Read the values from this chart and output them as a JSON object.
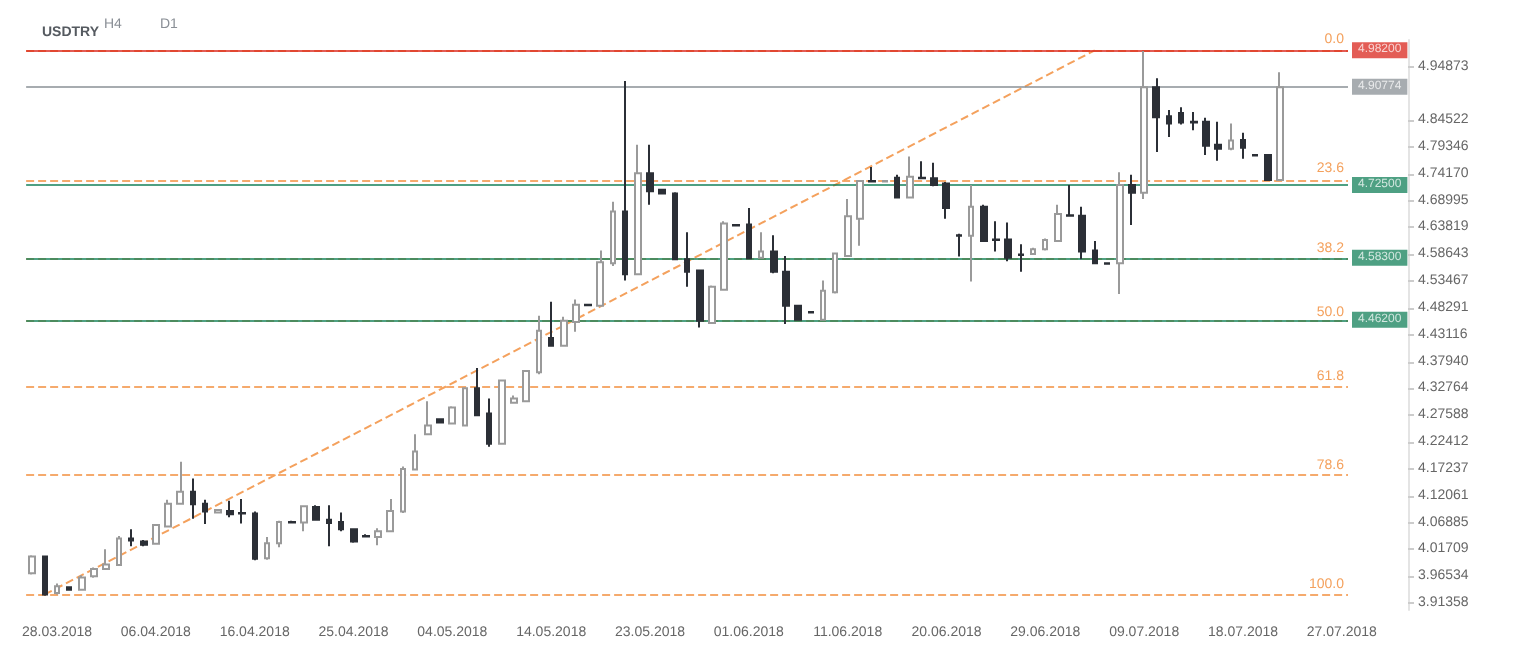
{
  "chart_data": {
    "type": "candlestick",
    "title": "USDTRY",
    "annotations": [
      "H4",
      "D1",
      {
        "text": "0.0",
        "y": 4.982
      },
      {
        "text": "23.6",
        "y": 4.7337
      },
      {
        "text": "38.2",
        "y": 4.5801
      },
      {
        "text": "50.0",
        "y": 4.456
      },
      {
        "text": "61.8",
        "y": 4.3317
      },
      {
        "text": "78.6",
        "y": 4.161
      },
      {
        "text": "100.0",
        "y": 3.93
      }
    ],
    "categories": [
      null,
      null,
      "28.03.2018",
      null,
      null,
      null,
      null,
      null,
      null,
      null,
      "06.04.2018",
      null,
      null,
      null,
      null,
      null,
      null,
      null,
      "16.04.2018",
      null,
      null,
      null,
      null,
      null,
      null,
      null,
      "25.04.2018",
      null,
      null,
      null,
      null,
      null,
      null,
      null,
      "04.05.2018",
      null,
      null,
      null,
      null,
      null,
      null,
      null,
      "14.05.2018",
      null,
      null,
      null,
      null,
      null,
      null,
      null,
      "23.05.2018",
      null,
      null,
      null,
      null,
      null,
      null,
      null,
      "01.06.2018",
      null,
      null,
      null,
      null,
      null,
      null,
      null,
      "11.06.2018",
      null,
      null,
      null,
      null,
      null,
      null,
      null,
      "20.06.2018",
      null,
      null,
      null,
      null,
      null,
      null,
      null,
      "29.06.2018",
      null,
      null,
      null,
      null,
      null,
      null,
      null,
      "09.07.2018",
      null,
      null,
      null,
      null,
      null,
      null,
      null,
      "18.07.2018",
      null,
      null,
      null,
      null,
      null,
      null,
      null,
      "27.07.2018"
    ],
    "ohlc": [
      [
        3.9707,
        4.0056,
        3.9683,
        4.0033
      ],
      [
        4.0033,
        4.0033,
        3.9276,
        3.9299
      ],
      [
        3.933,
        3.951,
        3.93,
        3.946
      ],
      [
        3.944,
        3.946,
        3.938,
        3.939
      ],
      [
        3.939,
        3.967,
        3.938,
        3.9625
      ],
      [
        3.965,
        3.982,
        3.962,
        3.979
      ],
      [
        3.979,
        4.017,
        3.977,
        3.988
      ],
      [
        3.987,
        4.043,
        3.986,
        4.038
      ],
      [
        4.038,
        4.056,
        4.023,
        4.034
      ],
      [
        4.032,
        4.035,
        4.023,
        4.026
      ],
      [
        4.028,
        4.064,
        4.026,
        4.064
      ],
      [
        4.061,
        4.113,
        4.06,
        4.105
      ],
      [
        4.105,
        4.186,
        4.105,
        4.128
      ],
      [
        4.128,
        4.154,
        4.076,
        4.104
      ],
      [
        4.105,
        4.113,
        4.066,
        4.09
      ],
      [
        4.088,
        4.095,
        4.086,
        4.093
      ],
      [
        4.091,
        4.111,
        4.079,
        4.085
      ],
      [
        4.087,
        4.114,
        4.067,
        4.086
      ],
      [
        4.086,
        4.09,
        3.996,
        3.999
      ],
      [
        4.0,
        4.041,
        3.997,
        4.029
      ],
      [
        4.029,
        4.072,
        4.021,
        4.07
      ],
      [
        4.07,
        4.072,
        4.067,
        4.069
      ],
      [
        4.069,
        4.102,
        4.052,
        4.1
      ],
      [
        4.099,
        4.102,
        4.072,
        4.074
      ],
      [
        4.074,
        4.102,
        4.023,
        4.068
      ],
      [
        4.07,
        4.088,
        4.052,
        4.056
      ],
      [
        4.056,
        4.058,
        4.03,
        4.032
      ],
      [
        4.043,
        4.046,
        4.04,
        4.042
      ],
      [
        4.041,
        4.058,
        4.025,
        4.052
      ],
      [
        4.052,
        4.114,
        4.05,
        4.091
      ],
      [
        4.09,
        4.177,
        4.087,
        4.172
      ],
      [
        4.171,
        4.239,
        4.169,
        4.206
      ],
      [
        4.239,
        4.303,
        4.238,
        4.256
      ],
      [
        4.268,
        4.27,
        4.26,
        4.262
      ],
      [
        4.26,
        4.293,
        4.259,
        4.291
      ],
      [
        4.256,
        4.329,
        4.254,
        4.328
      ],
      [
        4.328,
        4.367,
        4.274,
        4.276
      ],
      [
        4.279,
        4.308,
        4.215,
        4.221
      ],
      [
        4.221,
        4.345,
        4.219,
        4.343
      ],
      [
        4.3,
        4.314,
        4.298,
        4.308
      ],
      [
        4.303,
        4.363,
        4.301,
        4.361
      ],
      [
        4.359,
        4.468,
        4.355,
        4.439
      ],
      [
        4.425,
        4.495,
        4.408,
        4.41
      ],
      [
        4.41,
        4.466,
        4.408,
        4.458
      ],
      [
        4.456,
        4.499,
        4.437,
        4.489
      ],
      [
        4.489,
        4.491,
        4.487,
        4.488
      ],
      [
        4.487,
        4.594,
        4.485,
        4.571
      ],
      [
        4.569,
        4.688,
        4.564,
        4.669
      ],
      [
        4.669,
        4.921,
        4.536,
        4.548
      ],
      [
        4.548,
        4.798,
        4.546,
        4.743
      ],
      [
        4.743,
        4.798,
        4.682,
        4.708
      ],
      [
        4.711,
        4.713,
        4.702,
        4.704
      ],
      [
        4.704,
        4.706,
        4.575,
        4.577
      ],
      [
        4.577,
        4.629,
        4.524,
        4.553
      ],
      [
        4.555,
        4.557,
        4.445,
        4.458
      ],
      [
        4.454,
        4.526,
        4.452,
        4.524
      ],
      [
        4.518,
        4.65,
        4.516,
        4.646
      ],
      [
        4.643,
        4.645,
        4.641,
        4.642
      ],
      [
        4.644,
        4.676,
        4.577,
        4.579
      ],
      [
        4.58,
        4.629,
        4.578,
        4.592
      ],
      [
        4.592,
        4.623,
        4.55,
        4.553
      ],
      [
        4.553,
        4.583,
        4.452,
        4.487
      ],
      [
        4.487,
        4.489,
        4.458,
        4.46
      ],
      [
        4.475,
        4.476,
        4.473,
        4.474
      ],
      [
        4.46,
        4.536,
        4.458,
        4.516
      ],
      [
        4.513,
        4.59,
        4.511,
        4.588
      ],
      [
        4.583,
        4.693,
        4.581,
        4.66
      ],
      [
        4.655,
        4.73,
        4.603,
        4.728
      ],
      [
        4.728,
        4.755,
        4.725,
        4.727
      ],
      [
        4.727,
        4.73,
        4.725,
        4.728
      ],
      [
        4.734,
        4.74,
        4.694,
        4.696
      ],
      [
        4.696,
        4.775,
        4.694,
        4.736
      ],
      [
        4.734,
        4.766,
        4.732,
        4.733
      ],
      [
        4.733,
        4.763,
        4.718,
        4.72
      ],
      [
        4.723,
        4.726,
        4.655,
        4.676
      ],
      [
        4.623,
        4.626,
        4.582,
        4.622
      ],
      [
        4.622,
        4.72,
        4.534,
        4.678
      ],
      [
        4.678,
        4.682,
        4.61,
        4.612
      ],
      [
        4.615,
        4.65,
        4.592,
        4.614
      ],
      [
        4.615,
        4.648,
        4.573,
        4.58
      ],
      [
        4.586,
        4.606,
        4.553,
        4.585
      ],
      [
        4.587,
        4.599,
        4.585,
        4.596
      ],
      [
        4.596,
        4.617,
        4.594,
        4.614
      ],
      [
        4.612,
        4.682,
        4.61,
        4.664
      ],
      [
        4.662,
        4.72,
        4.659,
        4.661
      ],
      [
        4.661,
        4.678,
        4.577,
        4.592
      ],
      [
        4.594,
        4.612,
        4.567,
        4.569
      ],
      [
        4.569,
        4.571,
        4.567,
        4.568
      ],
      [
        4.569,
        4.745,
        4.51,
        4.72
      ],
      [
        4.72,
        4.74,
        4.643,
        4.705
      ],
      [
        4.705,
        4.979,
        4.693,
        4.909
      ],
      [
        4.909,
        4.926,
        4.784,
        4.851
      ],
      [
        4.853,
        4.865,
        4.813,
        4.839
      ],
      [
        4.859,
        4.87,
        4.837,
        4.841
      ],
      [
        4.842,
        4.861,
        4.826,
        4.841
      ],
      [
        4.842,
        4.85,
        4.778,
        4.796
      ],
      [
        4.798,
        4.842,
        4.767,
        4.79
      ],
      [
        4.79,
        4.839,
        4.787,
        4.806
      ],
      [
        4.807,
        4.821,
        4.771,
        4.792
      ],
      [
        4.778,
        4.779,
        4.776,
        4.777
      ],
      [
        4.778,
        4.78,
        4.728,
        4.73
      ],
      [
        4.73,
        4.938,
        4.728,
        4.909
      ],
      null,
      null,
      null,
      null,
      null
    ],
    "series": [
      {
        "type": "line",
        "color": "#f4a15d",
        "line_style": "dashed",
        "marker": "none",
        "values": [
          null,
          3.93,
          null,
          null,
          null,
          null,
          null,
          null,
          null,
          null,
          null,
          null,
          null,
          null,
          null,
          null,
          null,
          null,
          null,
          null,
          null,
          null,
          null,
          null,
          null,
          null,
          null,
          null,
          null,
          null,
          null,
          null,
          null,
          null,
          null,
          null,
          null,
          null,
          null,
          null,
          null,
          null,
          null,
          null,
          null,
          null,
          null,
          null,
          null,
          null,
          null,
          null,
          null,
          null,
          null,
          null,
          null,
          null,
          null,
          null,
          null,
          null,
          null,
          null,
          null,
          null,
          null,
          null,
          null,
          null,
          null,
          null,
          null,
          null,
          null,
          null,
          null,
          null,
          null,
          null,
          null,
          null,
          null,
          null,
          null,
          null,
          4.98,
          null,
          null,
          null,
          null,
          null,
          null,
          null,
          null,
          null,
          null,
          null,
          null,
          null,
          null,
          null,
          null,
          null,
          null,
          null,
          null
        ]
      }
    ],
    "ylim": [
      3.9,
      5.0
    ],
    "yticks": [
      3.91358,
      3.96534,
      4.01709,
      4.06885,
      4.12061,
      4.17237,
      4.22412,
      4.27588,
      4.32764,
      {
        "value": 4.3794,
        "label": "4.37940"
      },
      4.43116,
      4.48291,
      4.53467,
      4.58643,
      4.63819,
      4.68995,
      {
        "value": 4.7417,
        "label": "4.74170"
      },
      4.79346,
      4.84522,
      4.94873
    ],
    "grid": false,
    "ref_lines": [
      {
        "axis": "y",
        "value": 4.982,
        "color": "#f4a15d",
        "line_style": "dashed"
      },
      {
        "axis": "y",
        "value": 4.7337,
        "color": "#f4a15d",
        "line_style": "dashed"
      },
      {
        "axis": "y",
        "value": 4.5801,
        "color": "#f4a15d",
        "line_style": "dashed"
      },
      {
        "axis": "y",
        "value": 4.456,
        "color": "#f4a15d",
        "line_style": "dashed"
      },
      {
        "axis": "y",
        "value": 4.3317,
        "color": "#f4a15d",
        "line_style": "dashed"
      },
      {
        "axis": "y",
        "value": 4.161,
        "color": "#f4a15d",
        "line_style": "dashed"
      },
      {
        "axis": "y",
        "value": 3.93,
        "color": "#f4a15d",
        "line_style": "dashed"
      },
      {
        "axis": "y",
        "value": 4.982,
        "label": "4.98200",
        "color": "#d9251c",
        "line_style": "solid"
      },
      {
        "axis": "y",
        "value": 4.90774,
        "label": "4.90774",
        "color": "#8a9096",
        "line_style": "solid"
      },
      {
        "axis": "y",
        "value": 4.725,
        "label": "4.72500",
        "color": "#13805a",
        "line_style": "solid"
      },
      {
        "axis": "y",
        "value": 4.583,
        "label": "4.58300",
        "color": "#13805a",
        "line_style": "solid"
      },
      {
        "axis": "y",
        "value": 4.462,
        "label": "4.46200",
        "color": "#13805a",
        "line_style": "solid"
      }
    ]
  }
}
